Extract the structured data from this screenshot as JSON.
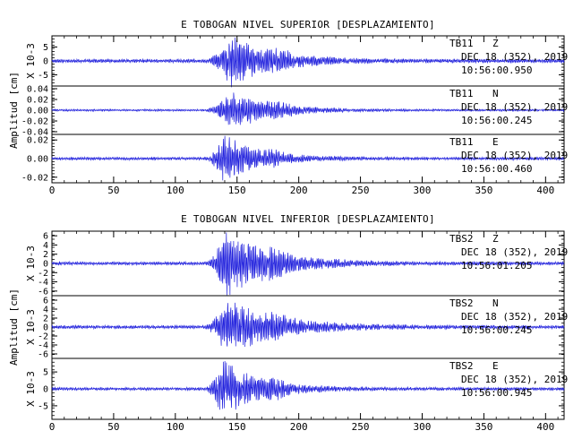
{
  "chart_data": [
    {
      "type": "line",
      "title": "E TOBOGAN NIVEL SUPERIOR [DESPLAZAMIENTO]",
      "ylabel": "Amplitud [cm]",
      "xlim": [
        0,
        415
      ],
      "x_ticks": [
        "0",
        "50",
        "100",
        "150",
        "200",
        "250",
        "300",
        "350",
        "400"
      ],
      "traces": [
        {
          "station": "TB11",
          "component": "Z",
          "date": "DEC 18 (352), 2019",
          "time": "10:56:00.950",
          "scale_label": "X 10-3",
          "y_ticks": [
            "5",
            "0",
            "-5"
          ],
          "ylim": [
            -9,
            9
          ],
          "peak": 8.5,
          "onset": 124,
          "peak_at": 145,
          "decay": 34,
          "noise": 0.07,
          "seed": 11
        },
        {
          "station": "TB11",
          "component": "N",
          "date": "DEC 18 (352), 2019",
          "time": "10:56:00.245",
          "scale_label": "",
          "y_ticks": [
            "0.04",
            "0.02",
            "0.00",
            "-0.02",
            "-0.04"
          ],
          "ylim": [
            -0.045,
            0.045
          ],
          "peak": 0.035,
          "onset": 124,
          "peak_at": 146,
          "decay": 30,
          "noise": 0.05,
          "seed": 22
        },
        {
          "station": "TB11",
          "component": "E",
          "date": "DEC 18 (352), 2019",
          "time": "10:56:00.460",
          "scale_label": "",
          "y_ticks": [
            "0.02",
            "0.00",
            "-0.02"
          ],
          "ylim": [
            -0.026,
            0.026
          ],
          "peak": 0.024,
          "onset": 124,
          "peak_at": 140,
          "decay": 28,
          "noise": 0.06,
          "seed": 33
        }
      ]
    },
    {
      "type": "line",
      "title": "E TOBOGAN NIVEL INFERIOR [DESPLAZAMIENTO]",
      "ylabel": "Amplitud [cm]",
      "xlim": [
        0,
        415
      ],
      "x_ticks": [
        "0",
        "50",
        "100",
        "150",
        "200",
        "250",
        "300",
        "350",
        "400"
      ],
      "traces": [
        {
          "station": "TBS2",
          "component": "Z",
          "date": "DEC 18 (352), 2019",
          "time": "10:56:01.205",
          "scale_label": "X 10-3",
          "y_ticks": [
            "6",
            "4",
            "2",
            "0",
            "-2",
            "-4",
            "-6"
          ],
          "ylim": [
            -7,
            7
          ],
          "peak": 6.5,
          "onset": 124,
          "peak_at": 141,
          "decay": 38,
          "noise": 0.05,
          "seed": 44
        },
        {
          "station": "TBS2",
          "component": "N",
          "date": "DEC 18 (352), 2019",
          "time": "10:56:00.245",
          "scale_label": "X 10-3",
          "y_ticks": [
            "6",
            "4",
            "2",
            "0",
            "-2",
            "-4",
            "-6"
          ],
          "ylim": [
            -7,
            7
          ],
          "peak": 5.8,
          "onset": 124,
          "peak_at": 142,
          "decay": 40,
          "noise": 0.06,
          "seed": 55
        },
        {
          "station": "TBS2",
          "component": "E",
          "date": "DEC 18 (352), 2019",
          "time": "10:56:00.945",
          "scale_label": "X 10-3",
          "y_ticks": [
            "5",
            "0",
            "-5"
          ],
          "ylim": [
            -9,
            9
          ],
          "peak": 8,
          "onset": 124,
          "peak_at": 139,
          "decay": 30,
          "noise": 0.05,
          "seed": 66
        }
      ]
    }
  ]
}
